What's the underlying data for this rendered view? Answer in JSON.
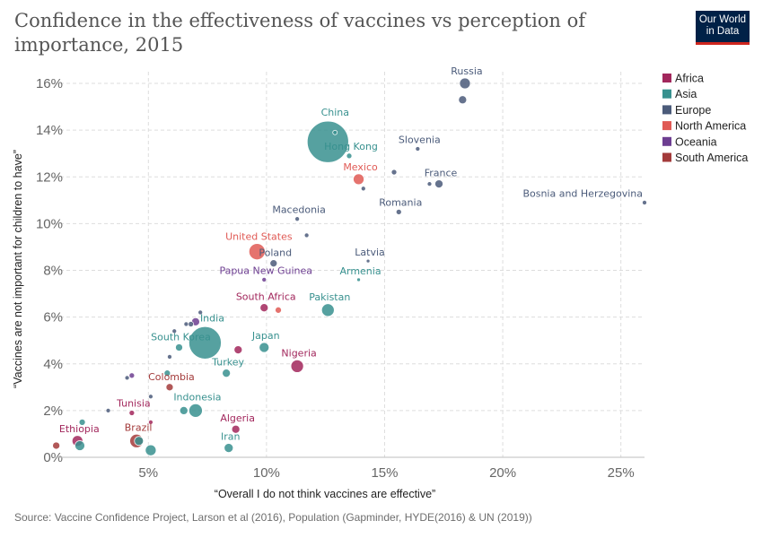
{
  "title": "Confidence in the effectiveness of vaccines vs perception of importance, 2015",
  "logo": {
    "line1": "Our World",
    "line2": "in Data"
  },
  "source": "Source: Vaccine Confidence Project, Larson et al (2016), Population (Gapminder, HYDE(2016) & UN (2019))",
  "chart_data": {
    "type": "scatter",
    "title": "Confidence in the effectiveness of vaccines vs perception of importance, 2015",
    "xlabel": "“Overall I do not think vaccines are effective”",
    "ylabel": "“Vaccines are not important for children to have”",
    "xlim": [
      1,
      26
    ],
    "ylim": [
      0,
      16.5
    ],
    "x_ticks": [
      {
        "v": 5,
        "label": "5%"
      },
      {
        "v": 10,
        "label": "10%"
      },
      {
        "v": 15,
        "label": "15%"
      },
      {
        "v": 20,
        "label": "20%"
      },
      {
        "v": 25,
        "label": "25%"
      }
    ],
    "y_ticks": [
      {
        "v": 0,
        "label": "0%"
      },
      {
        "v": 2,
        "label": "2%"
      },
      {
        "v": 4,
        "label": "4%"
      },
      {
        "v": 6,
        "label": "6%"
      },
      {
        "v": 8,
        "label": "8%"
      },
      {
        "v": 10,
        "label": "10%"
      },
      {
        "v": 12,
        "label": "12%"
      },
      {
        "v": 14,
        "label": "14%"
      },
      {
        "v": 16,
        "label": "16%"
      }
    ],
    "grid": true,
    "legend_position": "right",
    "legend": [
      {
        "name": "Africa",
        "color": "#a2275c"
      },
      {
        "name": "Asia",
        "color": "#38918f"
      },
      {
        "name": "Europe",
        "color": "#4b5b7a"
      },
      {
        "name": "North America",
        "color": "#e05a55"
      },
      {
        "name": "Oceania",
        "color": "#6d3e91"
      },
      {
        "name": "South America",
        "color": "#a33b3b"
      }
    ],
    "points": [
      {
        "label": "China",
        "x": 12.6,
        "y": 13.5,
        "r": 23,
        "region": "Asia",
        "big": true
      },
      {
        "label": "India",
        "x": 7.4,
        "y": 4.9,
        "r": 18,
        "region": "Asia",
        "big": true
      },
      {
        "label": "Russia",
        "x": 18.4,
        "y": 16.0,
        "r": 6,
        "region": "Europe"
      },
      {
        "label": "",
        "x": 18.3,
        "y": 15.3,
        "r": 4.5,
        "region": "Europe"
      },
      {
        "label": "Slovenia",
        "x": 16.4,
        "y": 13.2,
        "r": 2.5,
        "region": "Europe"
      },
      {
        "label": "Hong Kong",
        "x": 13.5,
        "y": 12.9,
        "r": 3,
        "region": "Asia"
      },
      {
        "label": "",
        "x": 12.9,
        "y": 13.9,
        "r": 2.5,
        "region": "Asia"
      },
      {
        "label": "Mexico",
        "x": 13.9,
        "y": 11.9,
        "r": 6,
        "region": "North America"
      },
      {
        "label": "",
        "x": 15.4,
        "y": 12.2,
        "r": 3,
        "region": "Europe"
      },
      {
        "label": "",
        "x": 14.1,
        "y": 11.5,
        "r": 2.5,
        "region": "Europe"
      },
      {
        "label": "France",
        "x": 17.3,
        "y": 11.7,
        "r": 4.5,
        "region": "Europe"
      },
      {
        "label": "",
        "x": 16.9,
        "y": 11.7,
        "r": 2.5,
        "region": "Europe"
      },
      {
        "label": "Bosnia and Herzegovina",
        "x": 26.0,
        "y": 10.9,
        "r": 2.5,
        "region": "Europe"
      },
      {
        "label": "Romania",
        "x": 15.6,
        "y": 10.5,
        "r": 3,
        "region": "Europe"
      },
      {
        "label": "Macedonia",
        "x": 11.3,
        "y": 10.2,
        "r": 2.5,
        "region": "Europe"
      },
      {
        "label": "United States",
        "x": 9.6,
        "y": 8.8,
        "r": 9,
        "region": "North America"
      },
      {
        "label": "",
        "x": 11.7,
        "y": 9.5,
        "r": 2.5,
        "region": "Europe"
      },
      {
        "label": "Poland",
        "x": 10.3,
        "y": 8.3,
        "r": 4,
        "region": "Europe"
      },
      {
        "label": "Latvia",
        "x": 14.3,
        "y": 8.4,
        "r": 2,
        "region": "Europe"
      },
      {
        "label": "Papua New Guinea",
        "x": 9.9,
        "y": 7.6,
        "r": 2.5,
        "region": "Oceania"
      },
      {
        "label": "Armenia",
        "x": 13.9,
        "y": 7.6,
        "r": 2,
        "region": "Asia"
      },
      {
        "label": "South Africa",
        "x": 9.9,
        "y": 6.4,
        "r": 4.5,
        "region": "Africa"
      },
      {
        "label": "",
        "x": 10.5,
        "y": 6.3,
        "r": 3.5,
        "region": "North America"
      },
      {
        "label": "Pakistan",
        "x": 12.6,
        "y": 6.3,
        "r": 7,
        "region": "Asia"
      },
      {
        "label": "",
        "x": 7.2,
        "y": 6.2,
        "r": 2.5,
        "region": "Europe"
      },
      {
        "label": "",
        "x": 7.0,
        "y": 5.8,
        "r": 4.5,
        "region": "Oceania"
      },
      {
        "label": "",
        "x": 6.8,
        "y": 5.7,
        "r": 3,
        "region": "Europe"
      },
      {
        "label": "",
        "x": 6.6,
        "y": 5.7,
        "r": 2.5,
        "region": "Europe"
      },
      {
        "label": "",
        "x": 6.1,
        "y": 5.4,
        "r": 2.5,
        "region": "Europe"
      },
      {
        "label": "South Korea",
        "x": 6.3,
        "y": 4.7,
        "r": 4,
        "region": "Asia"
      },
      {
        "label": "",
        "x": 8.8,
        "y": 4.6,
        "r": 4.5,
        "region": "Africa"
      },
      {
        "label": "Japan",
        "x": 9.9,
        "y": 4.7,
        "r": 5.5,
        "region": "Asia"
      },
      {
        "label": "",
        "x": 5.9,
        "y": 4.3,
        "r": 2.5,
        "region": "Europe"
      },
      {
        "label": "Nigeria",
        "x": 11.3,
        "y": 3.9,
        "r": 7,
        "region": "Africa"
      },
      {
        "label": "Turkey",
        "x": 8.3,
        "y": 3.6,
        "r": 4.5,
        "region": "Asia"
      },
      {
        "label": "",
        "x": 5.8,
        "y": 3.6,
        "r": 3.5,
        "region": "Asia"
      },
      {
        "label": "",
        "x": 4.3,
        "y": 3.5,
        "r": 3,
        "region": "Oceania"
      },
      {
        "label": "",
        "x": 4.1,
        "y": 3.4,
        "r": 2.5,
        "region": "Europe"
      },
      {
        "label": "Colombia",
        "x": 5.9,
        "y": 3.0,
        "r": 4,
        "region": "South America"
      },
      {
        "label": "",
        "x": 5.1,
        "y": 2.6,
        "r": 2.5,
        "region": "Europe"
      },
      {
        "label": "Indonesia",
        "x": 7.0,
        "y": 2.0,
        "r": 7.5,
        "region": "Asia"
      },
      {
        "label": "",
        "x": 6.5,
        "y": 2.0,
        "r": 4.5,
        "region": "Asia"
      },
      {
        "label": "Tunisia",
        "x": 4.3,
        "y": 1.9,
        "r": 3,
        "region": "Africa"
      },
      {
        "label": "",
        "x": 3.3,
        "y": 2.0,
        "r": 2.5,
        "region": "Europe"
      },
      {
        "label": "",
        "x": 2.2,
        "y": 1.5,
        "r": 3.5,
        "region": "Asia"
      },
      {
        "label": "",
        "x": 5.1,
        "y": 1.5,
        "r": 2.5,
        "region": "Africa"
      },
      {
        "label": "Algeria",
        "x": 8.7,
        "y": 1.2,
        "r": 4.5,
        "region": "Africa"
      },
      {
        "label": "Ethiopia",
        "x": 2.0,
        "y": 0.7,
        "r": 6,
        "region": "Africa"
      },
      {
        "label": "",
        "x": 2.1,
        "y": 0.5,
        "r": 5.5,
        "region": "Asia"
      },
      {
        "label": "",
        "x": 1.1,
        "y": 0.5,
        "r": 4,
        "region": "South America"
      },
      {
        "label": "Brazil",
        "x": 4.5,
        "y": 0.7,
        "r": 7.5,
        "region": "South America"
      },
      {
        "label": "",
        "x": 4.6,
        "y": 0.7,
        "r": 5,
        "region": "Asia"
      },
      {
        "label": "Iran",
        "x": 8.4,
        "y": 0.4,
        "r": 5,
        "region": "Asia"
      },
      {
        "label": "",
        "x": 5.1,
        "y": 0.3,
        "r": 6,
        "region": "Asia"
      }
    ]
  }
}
